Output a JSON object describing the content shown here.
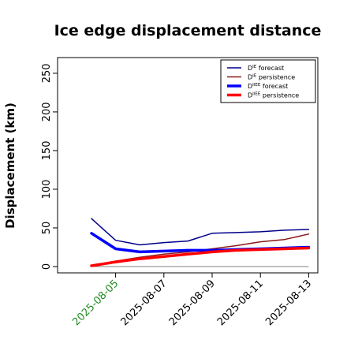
{
  "chart_data": {
    "type": "line",
    "title": "Ice edge displacement distance",
    "ylabel": "Displacement (km)",
    "xlabel": "",
    "ylim": [
      0,
      255
    ],
    "yticks": [
      "0",
      "50",
      "100",
      "150",
      "200",
      "250"
    ],
    "xtick_labels": [
      "2025-08-05",
      "2025-08-07",
      "2025-08-09",
      "2025-08-11",
      "2025-08-13"
    ],
    "xtick_colors": [
      "#228b22",
      "#000000",
      "#000000",
      "#000000",
      "#000000"
    ],
    "x": [
      "2025-08-04",
      "2025-08-05",
      "2025-08-06",
      "2025-08-07",
      "2025-08-08",
      "2025-08-09",
      "2025-08-10",
      "2025-08-11",
      "2025-08-12",
      "2025-08-13"
    ],
    "grid": false,
    "legend_position": "top-right",
    "series": [
      {
        "name": "D^IE forecast",
        "legend": {
          "base": "D",
          "sup": "IE",
          "tail": " forecast"
        },
        "color": "#00008b",
        "linewidth": 1.5,
        "values": [
          62,
          34,
          28,
          31,
          33,
          43,
          44,
          45,
          47,
          48
        ]
      },
      {
        "name": "D^IE persistence",
        "legend": {
          "base": "D",
          "sup": "IE",
          "tail": " persistence"
        },
        "color": "#8b1a1a",
        "linewidth": 1.5,
        "values": [
          1,
          7,
          12,
          16,
          19,
          23,
          27,
          32,
          35,
          42
        ]
      },
      {
        "name": "D^IIEE forecast",
        "legend": {
          "base": "D",
          "sup": "IIEE",
          "tail": " forecast"
        },
        "color": "#0000ff",
        "linewidth": 3.5,
        "values": [
          43,
          23,
          19,
          20,
          21,
          21,
          22,
          23,
          24,
          25
        ]
      },
      {
        "name": "D^IIEE persistence",
        "legend": {
          "base": "D",
          "sup": "IIEE",
          "tail": " persistence"
        },
        "color": "#ff0000",
        "linewidth": 3.5,
        "values": [
          1,
          6,
          10,
          13,
          16,
          19,
          21,
          22,
          23,
          24
        ]
      }
    ],
    "reference_line": {
      "y": 0,
      "color": "#808080"
    }
  }
}
